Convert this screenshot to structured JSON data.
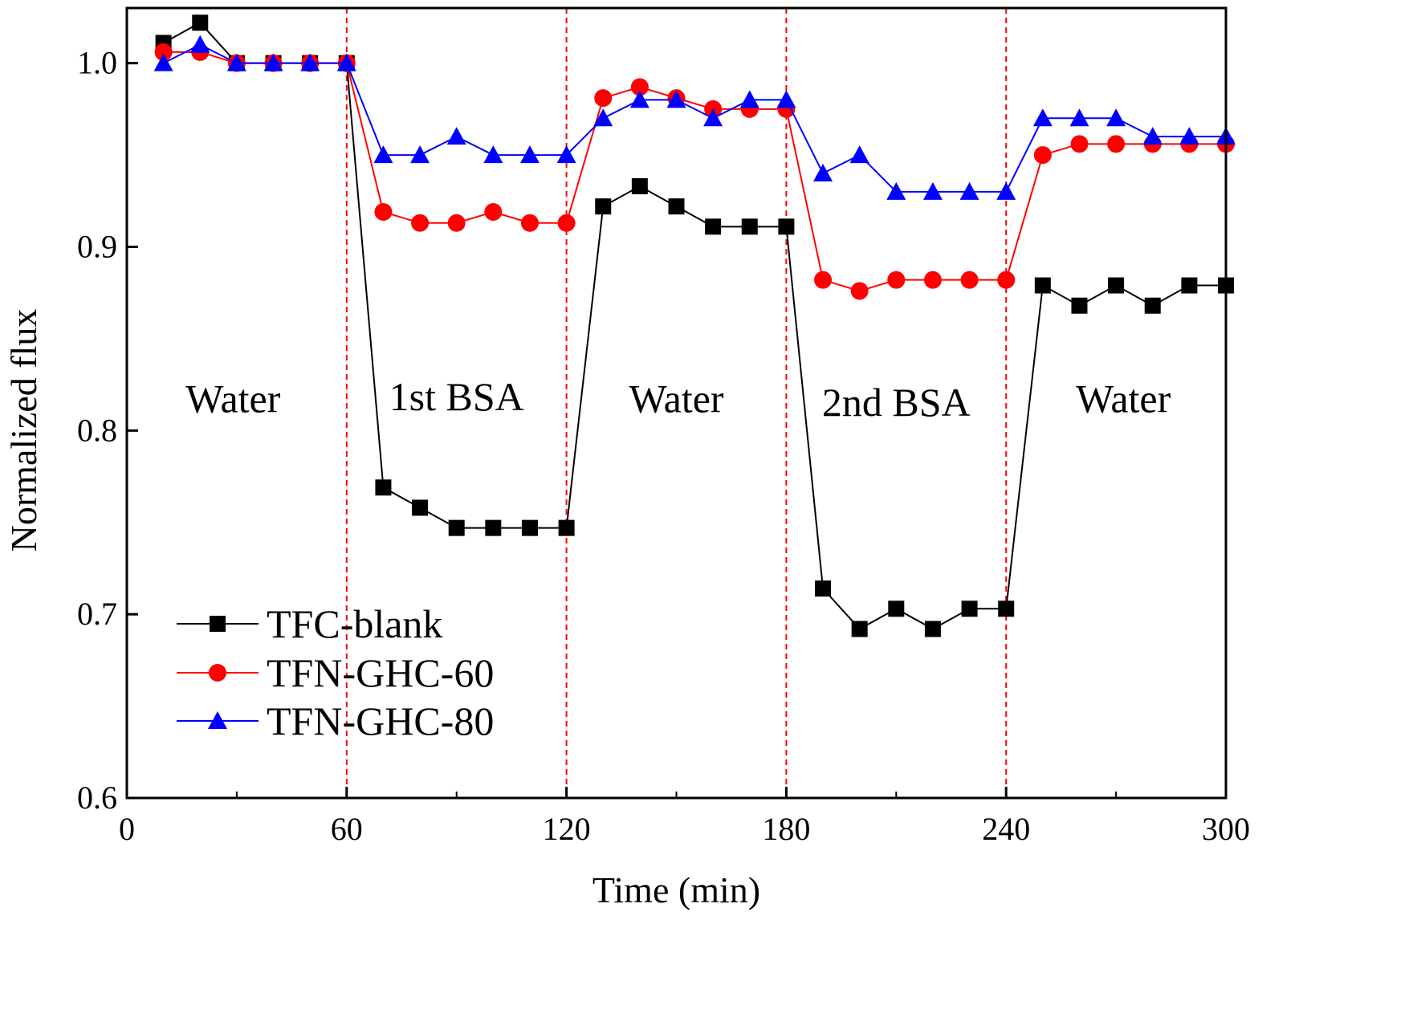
{
  "chart_data": {
    "type": "line",
    "title": "",
    "xlabel": "Time (min)",
    "ylabel": "Normalized flux",
    "xlim": [
      0,
      300
    ],
    "ylim": [
      0.6,
      1.03
    ],
    "xticks": [
      0,
      60,
      120,
      180,
      240,
      300
    ],
    "xtick_labels": [
      "0",
      "60",
      "120",
      "180",
      "240",
      "300"
    ],
    "yticks": [
      0.6,
      0.7,
      0.8,
      0.9,
      1.0
    ],
    "ytick_labels": [
      "0.6",
      "0.7",
      "0.8",
      "0.9",
      "1.0"
    ],
    "grid": false,
    "legend_position": "bottom-left",
    "dividers": [
      60,
      120,
      180,
      240
    ],
    "divider_color": "#ff0000",
    "regions": [
      {
        "label": "Water",
        "x": 29,
        "y": 0.81
      },
      {
        "label": "1st BSA",
        "x": 90,
        "y": 0.811
      },
      {
        "label": "Water",
        "x": 150,
        "y": 0.81
      },
      {
        "label": "2nd BSA",
        "x": 210,
        "y": 0.808
      },
      {
        "label": "Water",
        "x": 272,
        "y": 0.81
      }
    ],
    "x": [
      10,
      20,
      30,
      40,
      50,
      60,
      70,
      80,
      90,
      100,
      110,
      120,
      130,
      140,
      150,
      160,
      170,
      180,
      190,
      200,
      210,
      220,
      230,
      240,
      250,
      260,
      270,
      280,
      290,
      300
    ],
    "series": [
      {
        "name": "TFC-blank",
        "color": "#000000",
        "marker": "square",
        "values": [
          1.011,
          1.022,
          1.0,
          1.0,
          1.0,
          1.0,
          0.769,
          0.758,
          0.747,
          0.747,
          0.747,
          0.747,
          0.922,
          0.933,
          0.922,
          0.911,
          0.911,
          0.911,
          0.714,
          0.692,
          0.703,
          0.692,
          0.703,
          0.703,
          0.879,
          0.868,
          0.879,
          0.868,
          0.879,
          0.879
        ]
      },
      {
        "name": "TFN-GHC-60",
        "color": "#ff0000",
        "marker": "circle",
        "values": [
          1.006,
          1.006,
          1.0,
          1.0,
          1.0,
          1.0,
          0.919,
          0.913,
          0.913,
          0.919,
          0.913,
          0.913,
          0.981,
          0.987,
          0.981,
          0.975,
          0.975,
          0.975,
          0.882,
          0.876,
          0.882,
          0.882,
          0.882,
          0.882,
          0.95,
          0.956,
          0.956,
          0.956,
          0.956,
          0.956
        ]
      },
      {
        "name": "TFN-GHC-80",
        "color": "#0000ff",
        "marker": "triangle",
        "values": [
          1.0,
          1.01,
          1.0,
          1.0,
          1.0,
          1.0,
          0.95,
          0.95,
          0.96,
          0.95,
          0.95,
          0.95,
          0.97,
          0.98,
          0.98,
          0.97,
          0.98,
          0.98,
          0.94,
          0.95,
          0.93,
          0.93,
          0.93,
          0.93,
          0.97,
          0.97,
          0.97,
          0.96,
          0.96,
          0.96
        ]
      }
    ]
  }
}
